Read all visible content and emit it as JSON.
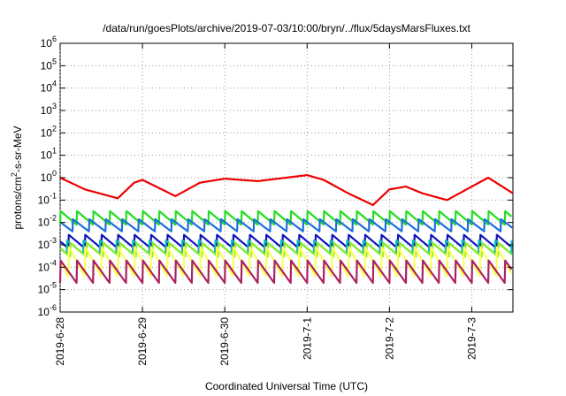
{
  "chart_data": {
    "type": "line",
    "title": "/data/run/goesPlots/archive/2019-07-03/10:00/bryn/../flux/5daysMarsFluxes.txt",
    "xlabel": "Coordinated Universal Time (UTC)",
    "ylabel": "protons/cm²-s-sr-MeV",
    "ylabel_base": "protons/cm",
    "ylabel_sup": "2",
    "ylabel_rest": "-s-sr-MeV",
    "yscale": "log",
    "ylim_exp": [
      -6,
      6
    ],
    "y_tick_exponents": [
      -6,
      -5,
      -4,
      -3,
      -2,
      -1,
      0,
      1,
      2,
      3,
      4,
      5,
      6
    ],
    "y_tick_base": "10",
    "xlim_days": [
      0,
      5.5
    ],
    "x_ticks": [
      {
        "label": "2019-6-28",
        "day": 0
      },
      {
        "label": "2019-6-29",
        "day": 1
      },
      {
        "label": "2019-6-30",
        "day": 2
      },
      {
        "label": "2019-7-1",
        "day": 3
      },
      {
        "label": "2019-7-2",
        "day": 4
      },
      {
        "label": "2019-7-3",
        "day": 5
      }
    ],
    "grid": true,
    "legend": "none",
    "series": [
      {
        "color": "#ee0000",
        "kind": "envelope",
        "anchors": [
          [
            0,
            1.0
          ],
          [
            0.3,
            0.3
          ],
          [
            0.7,
            0.12
          ],
          [
            0.9,
            0.6
          ],
          [
            1.0,
            0.8
          ],
          [
            1.4,
            0.15
          ],
          [
            1.7,
            0.6
          ],
          [
            2.0,
            0.9
          ],
          [
            2.4,
            0.7
          ],
          [
            3.0,
            1.3
          ],
          [
            3.2,
            0.8
          ],
          [
            3.5,
            0.2
          ],
          [
            3.8,
            0.06
          ],
          [
            4.0,
            0.3
          ],
          [
            4.2,
            0.4
          ],
          [
            4.4,
            0.2
          ],
          [
            4.7,
            0.1
          ],
          [
            5.0,
            0.4
          ],
          [
            5.2,
            1.0
          ],
          [
            5.5,
            0.2
          ]
        ]
      },
      {
        "color": "#22dd22",
        "kind": "saw",
        "base": 0.008,
        "period": 0.2,
        "phase": 0.0,
        "amp": 4.0
      },
      {
        "color": "#1e6fdd",
        "kind": "saw",
        "base": 0.004,
        "period": 0.2,
        "phase": 0.05,
        "amp": 3.5
      },
      {
        "color": "#1111bb",
        "kind": "saw",
        "base": 0.0007,
        "period": 0.2,
        "phase": 0.1,
        "amp": 4.0
      },
      {
        "color": "#11bbbb",
        "kind": "saw",
        "base": 0.0004,
        "period": 0.2,
        "phase": 0.12,
        "amp": 4.0
      },
      {
        "color": "#88ee22",
        "kind": "saw",
        "base": 0.0003,
        "period": 0.2,
        "phase": 0.08,
        "amp": 4.0
      },
      {
        "color": "#ffff55",
        "kind": "saw",
        "base": 4e-05,
        "period": 0.2,
        "phase": 0.1,
        "amp": 20.0
      },
      {
        "color": "#aa2266",
        "kind": "saw",
        "base": 2e-05,
        "period": 0.2,
        "phase": 0.0,
        "amp": 10.0
      }
    ]
  }
}
